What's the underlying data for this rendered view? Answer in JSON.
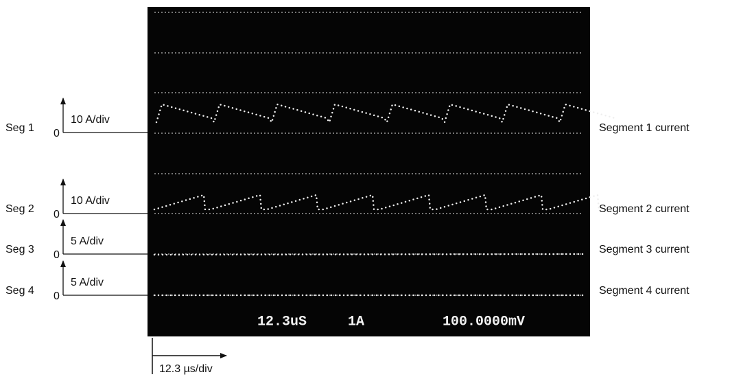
{
  "channels": [
    {
      "label": "Seg 1",
      "zero": "0",
      "scale": "10 A/div",
      "name": "Segment 1 current"
    },
    {
      "label": "Seg 2",
      "zero": "0",
      "scale": "10 A/div",
      "name": "Segment 2 current"
    },
    {
      "label": "Seg 3",
      "zero": "0",
      "scale": "5 A/div",
      "name": "Segment 3 current"
    },
    {
      "label": "Seg 4",
      "zero": "0",
      "scale": "5 A/div",
      "name": "Segment 4 current"
    }
  ],
  "screen": {
    "readout": {
      "timebase": "12.3uS",
      "current": "1A",
      "voltage": "100.0000mV"
    }
  },
  "timebase_label": "12.3 µs/div"
}
